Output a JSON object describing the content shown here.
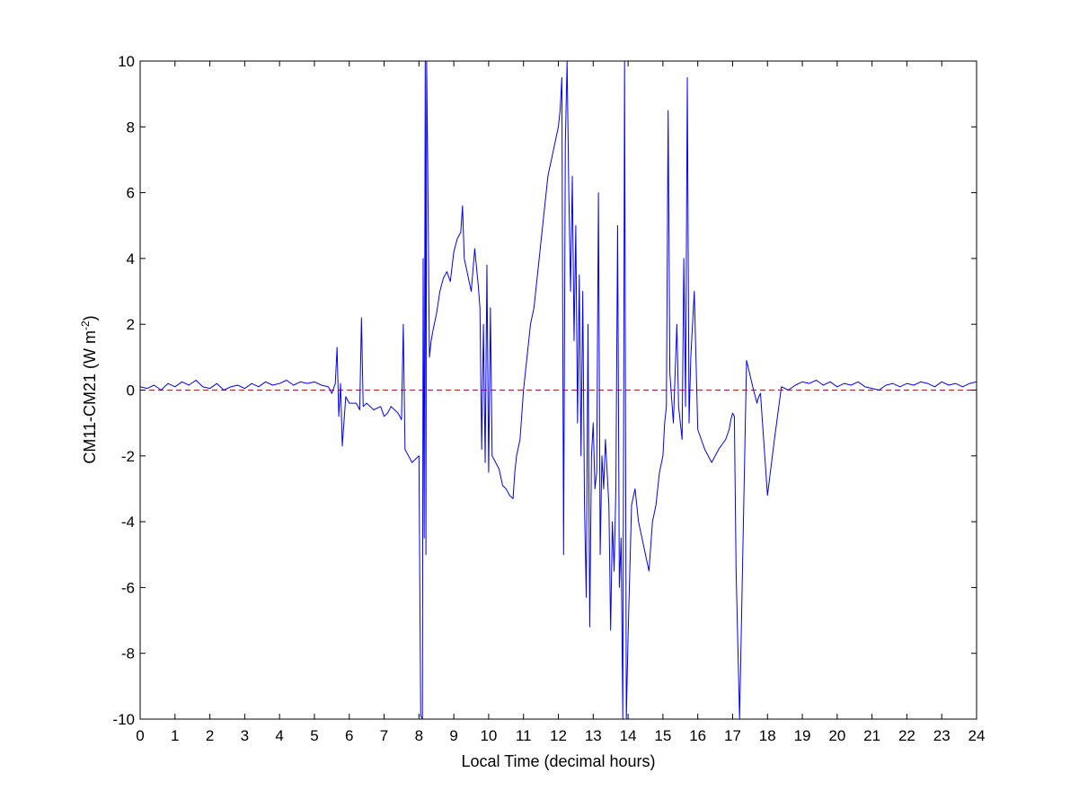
{
  "chart_data": {
    "type": "line",
    "title": "",
    "xlabel": "Local Time (decimal hours)",
    "ylabel": "CM11-CM21 (W m",
    "ylabel_superscript": "-2",
    "ylabel_suffix": ")",
    "xlim": [
      0,
      24
    ],
    "ylim": [
      -10,
      10
    ],
    "xticks": [
      0,
      1,
      2,
      3,
      4,
      5,
      6,
      7,
      8,
      9,
      10,
      11,
      12,
      13,
      14,
      15,
      16,
      17,
      18,
      19,
      20,
      21,
      22,
      23,
      24
    ],
    "xtick_labels": [
      "0",
      "1",
      "2",
      "3",
      "4",
      "5",
      "6",
      "7",
      "8",
      "9",
      "10",
      "11",
      "12",
      "13",
      "14",
      "15",
      "16",
      "17",
      "18",
      "19",
      "20",
      "21",
      "22",
      "23",
      "24"
    ],
    "yticks": [
      -10,
      -8,
      -6,
      -4,
      -2,
      0,
      2,
      4,
      6,
      8,
      10
    ],
    "ytick_labels": [
      "-10",
      "-8",
      "-6",
      "-4",
      "-2",
      "0",
      "2",
      "4",
      "6",
      "8",
      "10"
    ],
    "grid": false,
    "legend": "none",
    "reference_line": {
      "y": 0,
      "style": "dashed",
      "color": "#b22222"
    },
    "series": [
      {
        "color": "#0000ff",
        "x": [
          0.0,
          0.2,
          0.4,
          0.6,
          0.8,
          1.0,
          1.2,
          1.4,
          1.6,
          1.8,
          2.0,
          2.2,
          2.4,
          2.6,
          2.8,
          3.0,
          3.2,
          3.4,
          3.6,
          3.8,
          4.0,
          4.2,
          4.4,
          4.6,
          4.8,
          5.0,
          5.2,
          5.4,
          5.5,
          5.6,
          5.65,
          5.7,
          5.75,
          5.8,
          5.9,
          6.0,
          6.2,
          6.3,
          6.35,
          6.4,
          6.5,
          6.7,
          6.9,
          7.0,
          7.1,
          7.2,
          7.3,
          7.4,
          7.5,
          7.55,
          7.6,
          7.7,
          7.8,
          7.9,
          8.0,
          8.05,
          8.1,
          8.12,
          8.15,
          8.18,
          8.2,
          8.22,
          8.25,
          8.3,
          8.35,
          8.4,
          8.5,
          8.6,
          8.7,
          8.8,
          8.9,
          9.0,
          9.1,
          9.2,
          9.25,
          9.3,
          9.4,
          9.5,
          9.6,
          9.7,
          9.75,
          9.8,
          9.85,
          9.9,
          9.95,
          10.0,
          10.05,
          10.1,
          10.2,
          10.3,
          10.4,
          10.5,
          10.6,
          10.7,
          10.75,
          10.8,
          10.9,
          11.0,
          11.1,
          11.2,
          11.3,
          11.4,
          11.5,
          11.6,
          11.7,
          11.8,
          11.9,
          12.0,
          12.05,
          12.1,
          12.15,
          12.2,
          12.25,
          12.3,
          12.35,
          12.4,
          12.45,
          12.5,
          12.55,
          12.6,
          12.65,
          12.7,
          12.75,
          12.8,
          12.85,
          12.9,
          12.95,
          13.0,
          13.05,
          13.1,
          13.15,
          13.2,
          13.25,
          13.3,
          13.35,
          13.4,
          13.45,
          13.5,
          13.55,
          13.6,
          13.65,
          13.7,
          13.75,
          13.8,
          13.85,
          13.9,
          13.95,
          14.0,
          14.1,
          14.2,
          14.3,
          14.4,
          14.5,
          14.6,
          14.7,
          14.8,
          14.9,
          15.0,
          15.05,
          15.1,
          15.15,
          15.2,
          15.3,
          15.4,
          15.45,
          15.5,
          15.55,
          15.6,
          15.65,
          15.7,
          15.75,
          15.8,
          15.9,
          16.0,
          16.1,
          16.2,
          16.4,
          16.6,
          16.8,
          16.9,
          16.95,
          17.0,
          17.05,
          17.1,
          17.2,
          17.4,
          17.6,
          17.7,
          17.72,
          17.75,
          17.8,
          18.0,
          18.2,
          18.4,
          18.6,
          18.8,
          19.0,
          19.2,
          19.4,
          19.6,
          19.8,
          20.0,
          20.2,
          20.4,
          20.6,
          20.8,
          21.0,
          21.2,
          21.4,
          21.6,
          21.8,
          22.0,
          22.2,
          22.4,
          22.6,
          22.8,
          23.0,
          23.2,
          23.4,
          23.6,
          23.8,
          24.0
        ],
        "y": [
          0.1,
          0.05,
          0.15,
          0.0,
          0.2,
          0.1,
          0.25,
          0.15,
          0.3,
          0.1,
          0.05,
          0.2,
          0.0,
          0.1,
          0.15,
          0.05,
          0.2,
          0.1,
          0.25,
          0.15,
          0.2,
          0.3,
          0.15,
          0.25,
          0.2,
          0.25,
          0.15,
          0.1,
          -0.1,
          0.2,
          1.3,
          -0.8,
          0.2,
          -1.7,
          -0.2,
          -0.4,
          -0.4,
          -0.6,
          2.2,
          -0.5,
          -0.4,
          -0.6,
          -0.5,
          -0.8,
          -0.7,
          -0.5,
          -0.6,
          -0.7,
          -0.9,
          2.0,
          -1.8,
          -2.0,
          -2.2,
          -2.1,
          -2.0,
          -9.9,
          -10.0,
          4.0,
          -4.5,
          10.0,
          -5.0,
          10.0,
          7.0,
          1.0,
          1.5,
          1.8,
          2.3,
          3.0,
          3.4,
          3.6,
          3.3,
          4.2,
          4.6,
          4.8,
          5.6,
          4.0,
          3.5,
          3.0,
          4.3,
          3.2,
          2.5,
          -1.8,
          2.0,
          -2.2,
          3.8,
          -2.5,
          2.5,
          -2.0,
          -2.2,
          -2.4,
          -2.9,
          -3.0,
          -3.2,
          -3.3,
          -2.5,
          -2.0,
          -1.5,
          0.0,
          1.0,
          2.0,
          2.5,
          3.5,
          4.5,
          5.5,
          6.5,
          7.0,
          7.5,
          8.0,
          8.5,
          9.5,
          -5.0,
          7.5,
          10.0,
          6.0,
          3.0,
          6.5,
          1.5,
          5.0,
          -1.0,
          3.5,
          -2.0,
          3.0,
          -3.5,
          -6.3,
          2.0,
          -7.2,
          -2.0,
          -1.0,
          -3.0,
          -2.5,
          6.0,
          -5.0,
          -2.0,
          -3.0,
          -1.5,
          -2.5,
          -3.5,
          -7.3,
          -4.0,
          -5.5,
          -3.0,
          5.0,
          -6.0,
          -4.5,
          -10.0,
          10.0,
          -10.0,
          -7.5,
          -3.5,
          -3.0,
          -4.0,
          -4.5,
          -5.0,
          -5.5,
          -4.0,
          -3.5,
          -2.5,
          -2.0,
          -1.0,
          -0.5,
          8.5,
          0.5,
          -1.0,
          2.0,
          -0.5,
          -1.0,
          -1.5,
          4.0,
          -0.5,
          9.5,
          -1.0,
          1.0,
          3.0,
          -1.2,
          -1.5,
          -1.8,
          -2.2,
          -1.8,
          -1.5,
          -1.2,
          -0.9,
          -0.7,
          -0.8,
          -5.5,
          -10.0,
          0.9,
          0.0,
          -0.4,
          -0.3,
          -0.2,
          -0.1,
          -3.2,
          -1.5,
          0.1,
          0.0,
          0.15,
          0.25,
          0.2,
          0.3,
          0.15,
          0.25,
          0.1,
          0.2,
          0.15,
          0.25,
          0.1,
          0.05,
          0.0,
          0.15,
          0.2,
          0.1,
          0.2,
          0.15,
          0.25,
          0.2,
          0.1,
          0.25,
          0.15,
          0.2,
          0.1,
          0.2,
          0.25
        ]
      }
    ]
  }
}
